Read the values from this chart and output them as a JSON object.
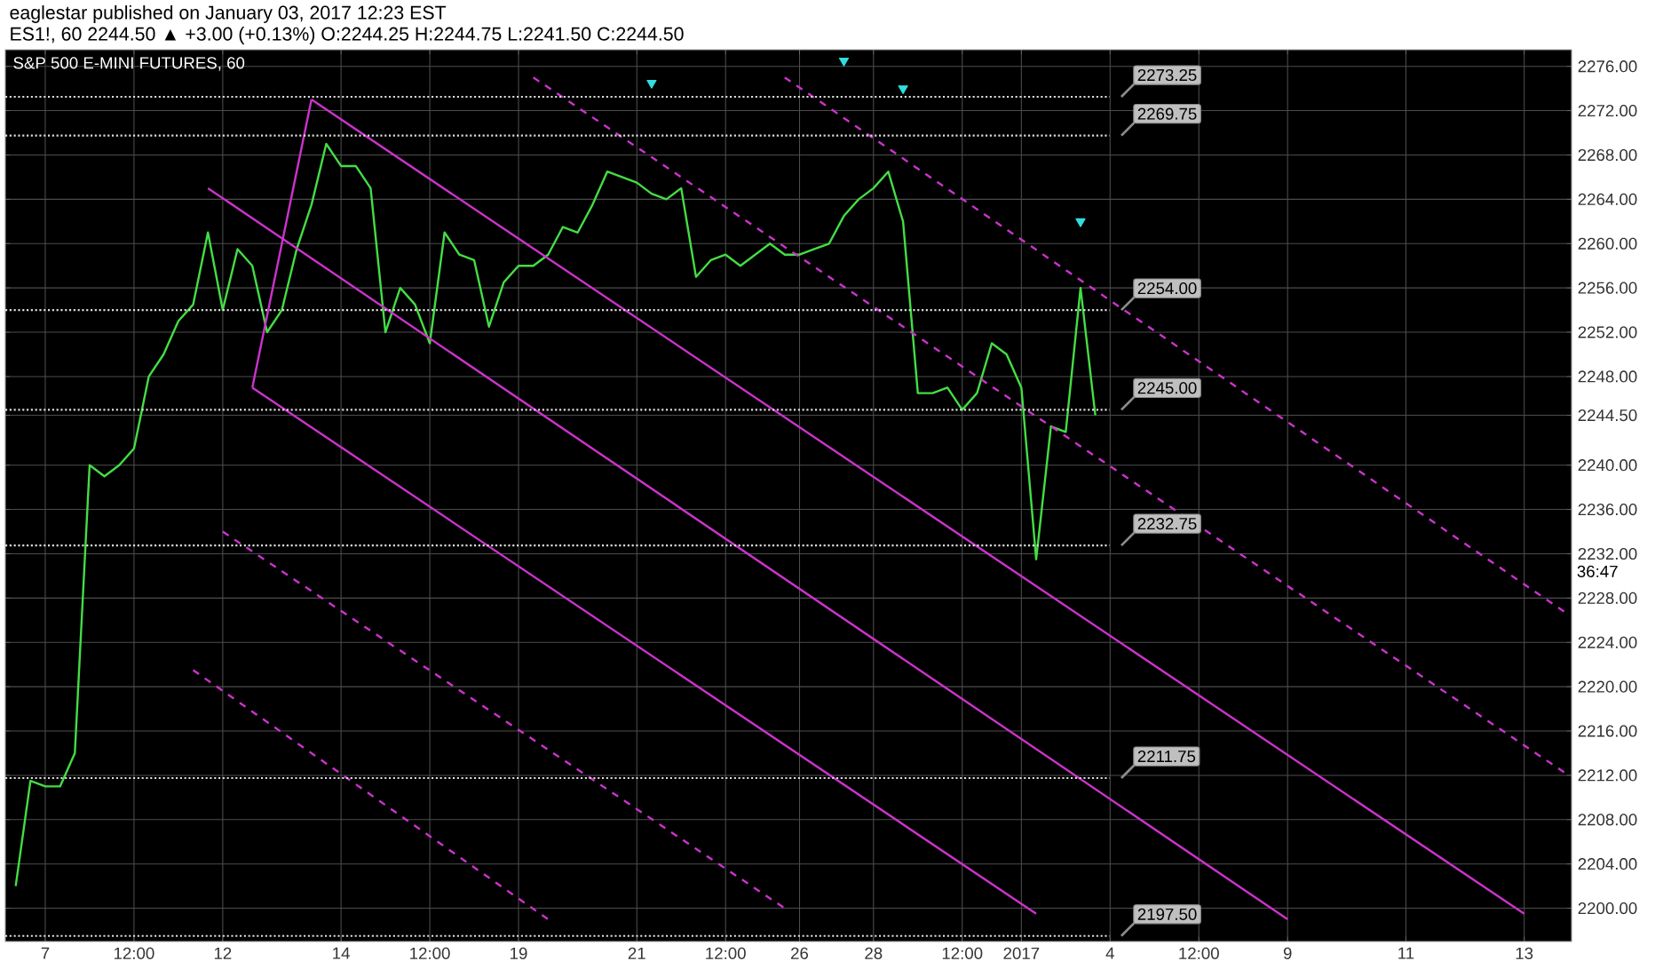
{
  "chart_data": {
    "type": "line",
    "title": "S&P 500 E-MINI FUTURES, 60",
    "annotations": [
      "eaglestar published on January 03, 2017 12:23 EST",
      "ES1!, 60  2244.50 ▲ +3.00 (+0.13%) O:2244.25 H:2244.75 L:2241.50 C:2244.50",
      "36:47"
    ],
    "categories": [
      null,
      null,
      "7",
      null,
      null,
      null,
      null,
      null,
      "12:00",
      null,
      null,
      null,
      null,
      null,
      "12",
      null,
      null,
      null,
      null,
      null,
      null,
      null,
      "14",
      null,
      null,
      null,
      null,
      null,
      "12:00",
      null,
      null,
      null,
      null,
      null,
      "19",
      null,
      null,
      null,
      null,
      null,
      null,
      null,
      "21",
      null,
      null,
      null,
      null,
      null,
      "12:00",
      null,
      null,
      null,
      null,
      "26",
      null,
      null,
      null,
      null,
      "28",
      null,
      null,
      null,
      null,
      null,
      "12:00",
      null,
      null,
      null,
      "2017",
      null,
      null,
      null,
      null,
      null,
      "4",
      null,
      null,
      null,
      null,
      null,
      "12:00",
      null,
      null,
      null,
      null,
      null,
      "9",
      null,
      null,
      null,
      null,
      null,
      null,
      null,
      "11",
      null,
      null,
      null,
      null,
      null,
      null,
      null,
      "13",
      null,
      null,
      null
    ],
    "ylim": [
      2197,
      2277.5
    ],
    "yticks": [
      {
        "value": 2200,
        "label": "2200.00"
      },
      {
        "value": 2204,
        "label": "2204.00"
      },
      {
        "value": 2208,
        "label": "2208.00"
      },
      {
        "value": 2212,
        "label": "2212.00"
      },
      {
        "value": 2216,
        "label": "2216.00"
      },
      {
        "value": 2220,
        "label": "2220.00"
      },
      {
        "value": 2224,
        "label": "2224.00"
      },
      {
        "value": 2228,
        "label": "2228.00"
      },
      {
        "value": 2232,
        "label": "2232.00"
      },
      {
        "value": 2236,
        "label": "2236.00"
      },
      {
        "value": 2240,
        "label": "2240.00"
      },
      {
        "value": 2244.5,
        "label": "2244.50"
      },
      {
        "value": 2248,
        "label": "2248.00"
      },
      {
        "value": 2252,
        "label": "2252.00"
      },
      {
        "value": 2256,
        "label": "2256.00"
      },
      {
        "value": 2260,
        "label": "2260.00"
      },
      {
        "value": 2264,
        "label": "2264.00"
      },
      {
        "value": 2268,
        "label": "2268.00"
      },
      {
        "value": 2272,
        "label": "2272.00"
      },
      {
        "value": 2276,
        "label": "2276.00"
      }
    ],
    "grid": true,
    "series": [
      {
        "color": "#44dd44",
        "values": [
          2202,
          2211.5,
          2211,
          2211,
          2214,
          2240,
          2239,
          2240,
          2241.5,
          2248,
          2250,
          2253,
          2254.5,
          2261,
          2254,
          2259.5,
          2258,
          2252,
          2254,
          2259.5,
          2263.5,
          2269,
          2267,
          2267,
          2265,
          2252,
          2256,
          2254.5,
          2251,
          2261,
          2259,
          2258.5,
          2252.5,
          2256.5,
          2258,
          2258,
          2259,
          2261.5,
          2261,
          2263.5,
          2266.5,
          2266,
          2265.5,
          2264.5,
          2264,
          2265,
          2257,
          2258.5,
          2259,
          2258,
          2259,
          2260,
          2259,
          2259,
          2259.5,
          2260,
          2262.5,
          2264,
          2265,
          2266.5,
          2262,
          2246.5,
          2246.5,
          2247,
          2245,
          2246.5,
          2251,
          2250,
          2247,
          2231.5,
          2243.5,
          2243,
          2256,
          2244.5,
          null,
          null,
          null,
          null,
          null,
          null,
          null,
          null,
          null,
          null,
          null,
          null,
          null,
          null,
          null,
          null,
          null,
          null,
          null,
          null,
          null,
          null,
          null,
          null,
          null,
          null,
          null,
          null,
          null,
          null,
          null,
          null
        ]
      },
      {
        "type": "line",
        "color": "#cc33cc",
        "line_style": "solid",
        "values": [
          null,
          null,
          null,
          null,
          null,
          null,
          null,
          null,
          null,
          null,
          null,
          null,
          null,
          null,
          null,
          null,
          2247,
          null,
          null,
          null,
          2273,
          null,
          null,
          null,
          null,
          null,
          null,
          null,
          null,
          null,
          null,
          null,
          null,
          null,
          null,
          null,
          null,
          null,
          null,
          null,
          null,
          null,
          null,
          null,
          null,
          null,
          null,
          null,
          null,
          null,
          null,
          null,
          null,
          null,
          null,
          null,
          null,
          null,
          null,
          null,
          null,
          null,
          null,
          null,
          null,
          null,
          null,
          null,
          null,
          null,
          null,
          null,
          null,
          null,
          null,
          null,
          null,
          null,
          null,
          null,
          null,
          null,
          null,
          null,
          null,
          null,
          null,
          null,
          null,
          null,
          null,
          null,
          null,
          null,
          null,
          null,
          null,
          null,
          null,
          null,
          null,
          null,
          null,
          null,
          null,
          null
        ]
      },
      {
        "type": "line",
        "color": "#cc33cc",
        "line_style": "solid",
        "values": [
          null,
          null,
          null,
          null,
          null,
          null,
          null,
          null,
          null,
          null,
          null,
          null,
          null,
          null,
          null,
          null,
          null,
          null,
          null,
          null,
          2273,
          null,
          null,
          null,
          null,
          null,
          null,
          null,
          null,
          null,
          null,
          null,
          null,
          null,
          null,
          null,
          null,
          null,
          null,
          null,
          null,
          null,
          null,
          null,
          null,
          null,
          null,
          null,
          null,
          null,
          null,
          null,
          null,
          null,
          null,
          null,
          null,
          null,
          null,
          null,
          null,
          null,
          null,
          null,
          null,
          null,
          null,
          null,
          null,
          null,
          null,
          null,
          null,
          null,
          null,
          null,
          null,
          null,
          null,
          null,
          null,
          null,
          null,
          null,
          null,
          null,
          null,
          null,
          null,
          null,
          null,
          null,
          null,
          null,
          null,
          null,
          null,
          null,
          null,
          null,
          null,
          null,
          2199.5,
          null,
          null,
          null
        ]
      },
      {
        "type": "line",
        "color": "#cc33cc",
        "line_style": "solid",
        "values": [
          null,
          null,
          null,
          null,
          null,
          null,
          null,
          null,
          null,
          null,
          null,
          null,
          null,
          2265,
          null,
          null,
          null,
          null,
          null,
          null,
          null,
          null,
          null,
          null,
          null,
          null,
          null,
          null,
          null,
          null,
          null,
          null,
          null,
          null,
          null,
          null,
          null,
          null,
          null,
          null,
          null,
          null,
          null,
          null,
          null,
          null,
          null,
          null,
          null,
          null,
          null,
          null,
          null,
          null,
          null,
          null,
          null,
          null,
          null,
          null,
          null,
          null,
          null,
          null,
          null,
          null,
          null,
          null,
          null,
          null,
          null,
          null,
          null,
          null,
          null,
          null,
          null,
          null,
          null,
          null,
          null,
          null,
          null,
          null,
          null,
          null,
          2199,
          null,
          null,
          null,
          null,
          null,
          null,
          null,
          null,
          null,
          null,
          null,
          null,
          null,
          null,
          null,
          null,
          null,
          null,
          null
        ]
      },
      {
        "type": "line",
        "color": "#cc33cc",
        "line_style": "solid",
        "values": [
          null,
          null,
          null,
          null,
          null,
          null,
          null,
          null,
          null,
          null,
          null,
          null,
          null,
          null,
          null,
          null,
          2247,
          null,
          null,
          null,
          null,
          null,
          null,
          null,
          null,
          null,
          null,
          null,
          null,
          null,
          null,
          null,
          null,
          null,
          null,
          null,
          null,
          null,
          null,
          null,
          null,
          null,
          null,
          null,
          null,
          null,
          null,
          null,
          null,
          null,
          null,
          null,
          null,
          null,
          null,
          null,
          null,
          null,
          null,
          null,
          null,
          null,
          null,
          null,
          null,
          null,
          null,
          null,
          null,
          2199.5,
          null,
          null,
          null,
          null,
          null,
          null,
          null,
          null,
          null,
          null,
          null,
          null,
          null,
          null,
          null,
          null,
          null,
          null,
          null,
          null,
          null,
          null,
          null,
          null,
          null,
          null,
          null,
          null,
          null,
          null,
          null,
          null,
          null,
          null,
          null,
          null
        ]
      },
      {
        "type": "line",
        "color": "#cc33cc",
        "line_style": "dashed",
        "values": [
          null,
          null,
          null,
          null,
          null,
          null,
          null,
          null,
          null,
          null,
          null,
          null,
          null,
          null,
          null,
          null,
          null,
          null,
          null,
          null,
          null,
          null,
          null,
          null,
          null,
          null,
          null,
          null,
          null,
          null,
          null,
          null,
          null,
          null,
          null,
          2275,
          null,
          null,
          null,
          null,
          null,
          null,
          null,
          null,
          null,
          null,
          null,
          null,
          null,
          null,
          null,
          null,
          null,
          null,
          null,
          null,
          null,
          null,
          null,
          null,
          null,
          null,
          null,
          null,
          null,
          null,
          null,
          null,
          null,
          null,
          null,
          null,
          null,
          null,
          null,
          null,
          null,
          null,
          null,
          null,
          null,
          null,
          null,
          null,
          null,
          null,
          null,
          null,
          null,
          null,
          null,
          null,
          null,
          null,
          null,
          null,
          null,
          null,
          null,
          null,
          null,
          null,
          null,
          null,
          null,
          2212
        ]
      },
      {
        "type": "line",
        "color": "#cc33cc",
        "line_style": "dashed",
        "values": [
          null,
          null,
          null,
          null,
          null,
          null,
          null,
          null,
          null,
          null,
          null,
          null,
          null,
          null,
          null,
          null,
          null,
          null,
          null,
          null,
          null,
          null,
          null,
          null,
          null,
          null,
          null,
          null,
          null,
          null,
          null,
          null,
          null,
          null,
          null,
          null,
          null,
          null,
          null,
          null,
          null,
          null,
          null,
          null,
          null,
          null,
          null,
          null,
          null,
          null,
          null,
          null,
          2275,
          null,
          null,
          null,
          null,
          null,
          null,
          null,
          null,
          null,
          null,
          null,
          null,
          null,
          null,
          null,
          null,
          null,
          null,
          null,
          null,
          null,
          null,
          null,
          null,
          null,
          null,
          null,
          null,
          null,
          null,
          null,
          null,
          null,
          null,
          null,
          null,
          null,
          null,
          null,
          null,
          null,
          null,
          null,
          null,
          null,
          null,
          null,
          null,
          null,
          null,
          null,
          null,
          2226.5
        ]
      },
      {
        "type": "line",
        "color": "#cc33cc",
        "line_style": "dashed",
        "values": [
          null,
          null,
          null,
          null,
          null,
          null,
          null,
          null,
          null,
          null,
          null,
          null,
          null,
          null,
          2234,
          null,
          null,
          null,
          null,
          null,
          null,
          null,
          null,
          null,
          null,
          null,
          null,
          null,
          null,
          null,
          null,
          null,
          null,
          null,
          null,
          null,
          null,
          null,
          null,
          null,
          null,
          null,
          null,
          null,
          null,
          null,
          null,
          null,
          null,
          null,
          null,
          null,
          2200,
          null,
          null,
          null,
          null,
          null,
          null,
          null,
          null,
          null,
          null,
          null,
          null,
          null,
          null,
          null,
          null,
          null,
          null,
          null,
          null,
          null,
          null,
          null,
          null,
          null,
          null,
          null,
          null,
          null,
          null,
          null,
          null,
          null,
          null,
          null,
          null,
          null,
          null,
          null,
          null,
          null,
          null,
          null,
          null,
          null,
          null,
          null,
          null,
          null,
          null,
          null,
          null,
          null
        ]
      },
      {
        "type": "line",
        "color": "#cc33cc",
        "line_style": "dashed",
        "values": [
          null,
          null,
          null,
          null,
          null,
          null,
          null,
          null,
          null,
          null,
          null,
          null,
          2221.5,
          null,
          null,
          null,
          null,
          null,
          null,
          null,
          null,
          null,
          null,
          null,
          null,
          null,
          null,
          null,
          null,
          null,
          null,
          null,
          null,
          null,
          null,
          null,
          2199,
          null,
          null,
          null,
          null,
          null,
          null,
          null,
          null,
          null,
          null,
          null,
          null,
          null,
          null,
          null,
          null,
          null,
          null,
          null,
          null,
          null,
          null,
          null,
          null,
          null,
          null,
          null,
          null,
          null,
          null,
          null,
          null,
          null,
          null,
          null,
          null,
          null,
          null,
          null,
          null,
          null,
          null,
          null,
          null,
          null,
          null,
          null,
          null,
          null,
          null,
          null,
          null,
          null,
          null,
          null,
          null,
          null,
          null,
          null,
          null,
          null,
          null,
          null,
          null,
          null,
          null,
          null,
          null,
          null
        ]
      },
      {
        "type": "scatter",
        "color": "#33dddd",
        "marker": "triangle",
        "values": [
          null,
          null,
          null,
          null,
          null,
          null,
          null,
          null,
          null,
          null,
          null,
          null,
          null,
          null,
          null,
          null,
          null,
          null,
          null,
          null,
          null,
          null,
          null,
          null,
          null,
          null,
          null,
          null,
          null,
          null,
          null,
          null,
          null,
          null,
          null,
          null,
          null,
          null,
          null,
          null,
          null,
          null,
          null,
          2274.5,
          null,
          null,
          null,
          null,
          null,
          null,
          null,
          null,
          null,
          null,
          null,
          null,
          2276.5,
          null,
          null,
          null,
          2274,
          null,
          null,
          null,
          null,
          null,
          null,
          null,
          null,
          null,
          null,
          null,
          2262,
          null,
          null,
          null,
          null,
          null,
          null,
          null,
          null,
          null,
          null,
          null,
          null,
          null,
          null,
          null,
          null,
          null,
          null,
          null,
          null,
          null,
          null,
          null,
          null,
          null,
          null,
          null,
          null,
          null,
          null,
          null,
          null,
          null
        ]
      }
    ],
    "ref_lines": [
      {
        "axis": "y",
        "value": 2273.25,
        "label": "2273.25",
        "color": "#dddddd",
        "line_style": "dotted"
      },
      {
        "axis": "y",
        "value": 2269.75,
        "label": "2269.75",
        "color": "#dddddd",
        "line_style": "dotted"
      },
      {
        "axis": "y",
        "value": 2254.0,
        "label": "2254.00",
        "color": "#dddddd",
        "line_style": "dotted"
      },
      {
        "axis": "y",
        "value": 2245.0,
        "label": "2245.00",
        "color": "#dddddd",
        "line_style": "dotted"
      },
      {
        "axis": "y",
        "value": 2232.75,
        "label": "2232.75",
        "color": "#dddddd",
        "line_style": "dotted"
      },
      {
        "axis": "y",
        "value": 2211.75,
        "label": "2211.75",
        "color": "#dddddd",
        "line_style": "dotted"
      },
      {
        "axis": "y",
        "value": 2197.5,
        "label": "2197.50",
        "color": "#dddddd",
        "line_style": "dotted"
      }
    ]
  }
}
